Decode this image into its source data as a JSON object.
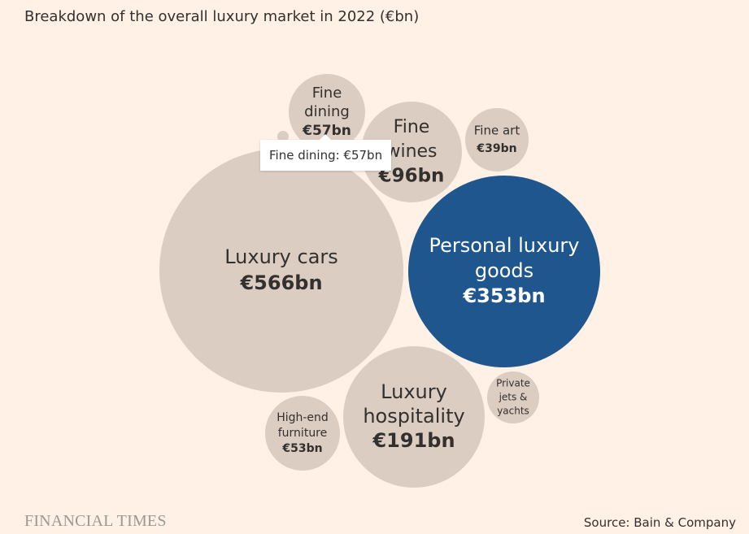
{
  "header": {
    "title": "Breakdown of the overall luxury market in 2022 (€bn)"
  },
  "tooltip": {
    "text": "Fine dining: €57bn"
  },
  "footer": {
    "brand": "FINANCIAL TIMES",
    "source": "Source: Bain & Company"
  },
  "colors": {
    "bubble": "#dccdc2",
    "highlight": "#1f568e",
    "background": "#fff1e5",
    "text": "#33302e",
    "highlight_text": "#ffffff"
  },
  "chart_data": {
    "type": "bubble",
    "title": "Breakdown of the overall luxury market in 2022 (€bn)",
    "unit": "€bn",
    "items": [
      {
        "key": "luxury-cars",
        "lines": [
          "Luxury cars"
        ],
        "value": 566,
        "value_label": "€566bn",
        "highlight": false
      },
      {
        "key": "personal-luxury-goods",
        "lines": [
          "Personal luxury",
          "goods"
        ],
        "value": 353,
        "value_label": "€353bn",
        "highlight": true
      },
      {
        "key": "luxury-hospitality",
        "lines": [
          "Luxury",
          "hospitality"
        ],
        "value": 191,
        "value_label": "€191bn",
        "highlight": false
      },
      {
        "key": "fine-wines",
        "lines": [
          "Fine",
          "wines"
        ],
        "value": 96,
        "value_label": "€96bn",
        "highlight": false
      },
      {
        "key": "fine-dining",
        "lines": [
          "Fine",
          "dining"
        ],
        "value": 57,
        "value_label": "€57bn",
        "highlight": false
      },
      {
        "key": "high-end-furniture",
        "lines": [
          "High-end",
          "furniture"
        ],
        "value": 53,
        "value_label": "€53bn",
        "highlight": false
      },
      {
        "key": "fine-art",
        "lines": [
          "Fine art"
        ],
        "value": 39,
        "value_label": "€39bn",
        "highlight": false
      },
      {
        "key": "private-jets-yachts",
        "lines": [
          "Private",
          "jets &",
          "yachts"
        ],
        "value": null,
        "value_label": "",
        "highlight": false
      }
    ]
  }
}
